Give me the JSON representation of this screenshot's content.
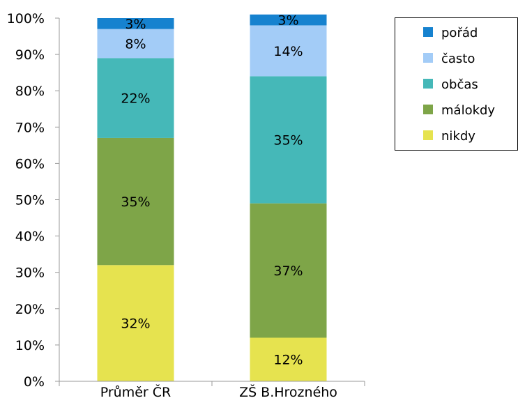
{
  "chart_data": {
    "type": "bar",
    "stacked": true,
    "percent": true,
    "categories": [
      "Průměr ČR",
      "ZŠ B.Hrozného"
    ],
    "series": [
      {
        "name": "nikdy",
        "color": "#e6e34f",
        "values": [
          32,
          12
        ],
        "labels": [
          "32%",
          "12%"
        ]
      },
      {
        "name": "málokdy",
        "color": "#7ea548",
        "values": [
          35,
          37
        ],
        "labels": [
          "35%",
          "37%"
        ]
      },
      {
        "name": "občas",
        "color": "#45b8b8",
        "values": [
          22,
          35
        ],
        "labels": [
          "22%",
          "35%"
        ]
      },
      {
        "name": "často",
        "color": "#a3ccf7",
        "values": [
          8,
          14
        ],
        "labels": [
          "8%",
          "14%"
        ]
      },
      {
        "name": "pořád",
        "color": "#1682cf",
        "values": [
          3,
          3
        ],
        "labels": [
          "3%",
          "3%"
        ]
      }
    ],
    "legend_order": [
      "pořád",
      "často",
      "občas",
      "málokdy",
      "nikdy"
    ],
    "ylim": [
      0,
      100
    ],
    "yticks": [
      "0%",
      "10%",
      "20%",
      "30%",
      "40%",
      "50%",
      "60%",
      "70%",
      "80%",
      "90%",
      "100%"
    ],
    "legend_position": "top-right",
    "grid": false
  }
}
